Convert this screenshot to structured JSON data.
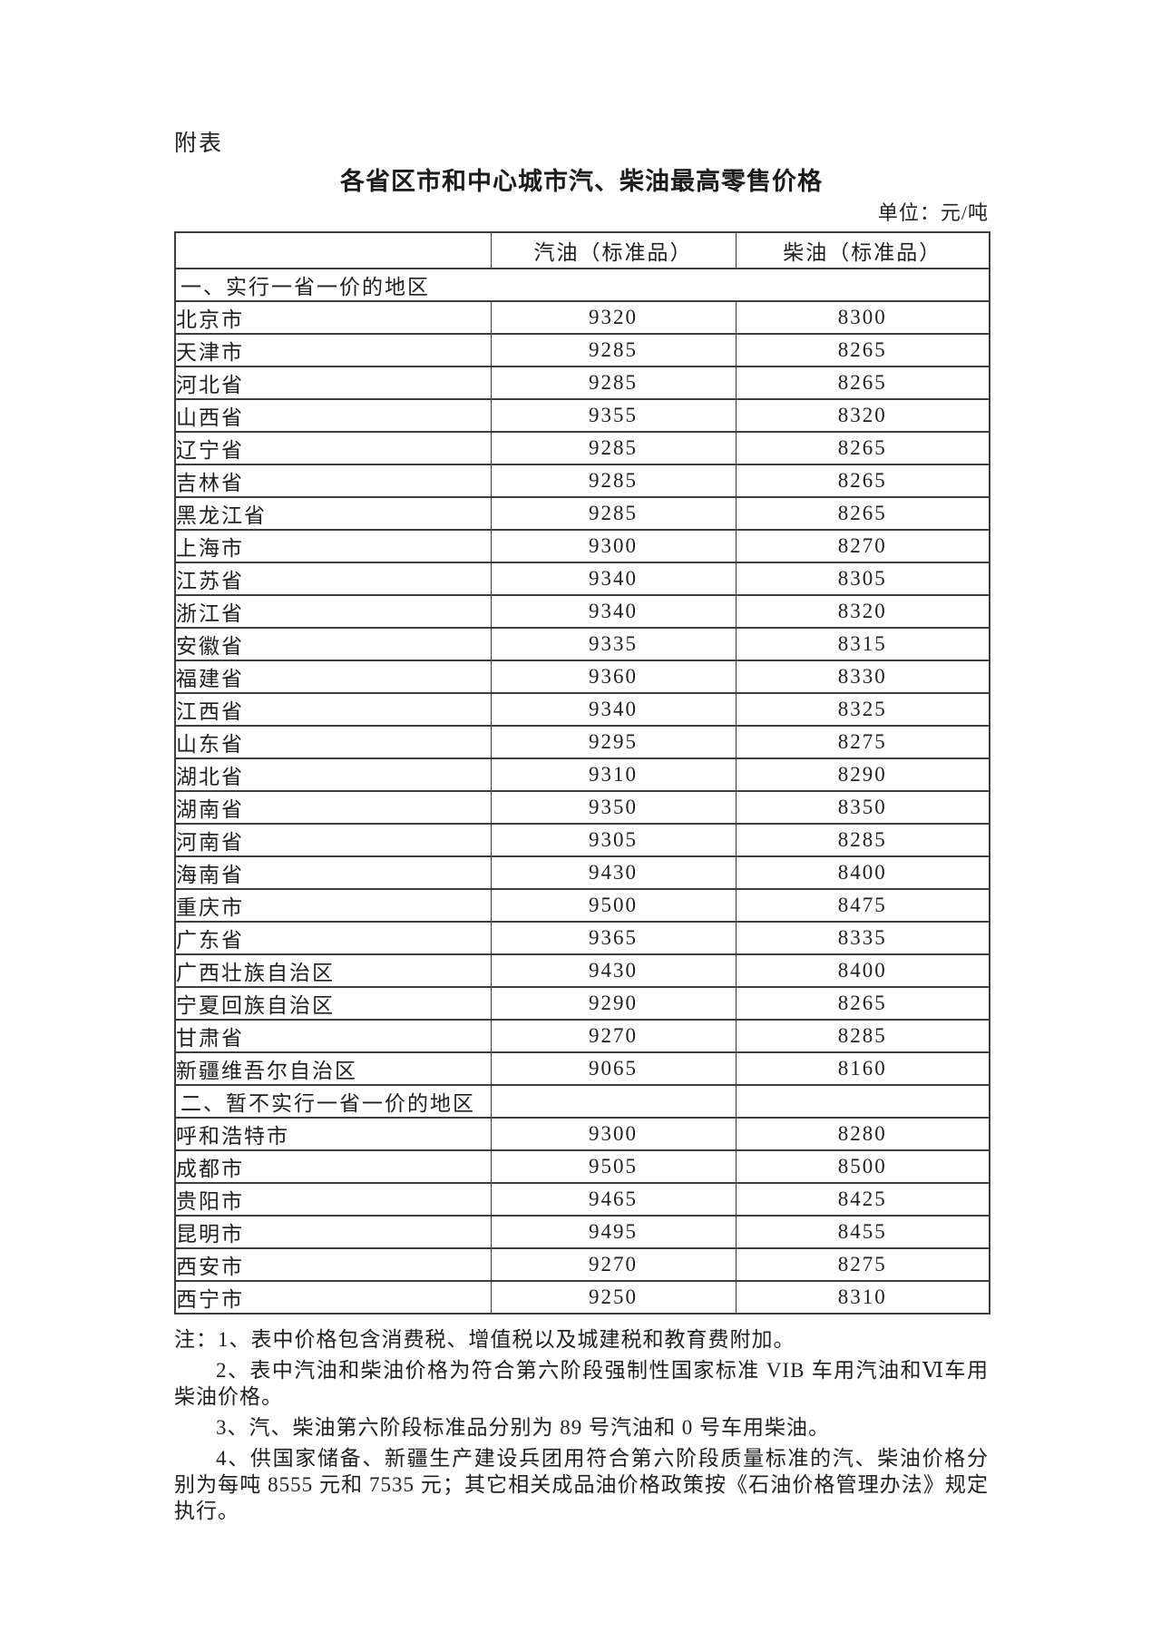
{
  "page": {
    "label": "附表",
    "title": "各省区市和中心城市汽、柴油最高零售价格",
    "unit": "单位：元/吨"
  },
  "table": {
    "columns": [
      "",
      "汽油（标准品）",
      "柴油（标准品）"
    ],
    "sections": [
      {
        "heading": "一、实行一省一价的地区",
        "full_span": true,
        "rows": [
          {
            "region": "北京市",
            "gasoline": "9320",
            "diesel": "8300"
          },
          {
            "region": "天津市",
            "gasoline": "9285",
            "diesel": "8265"
          },
          {
            "region": "河北省",
            "gasoline": "9285",
            "diesel": "8265"
          },
          {
            "region": "山西省",
            "gasoline": "9355",
            "diesel": "8320"
          },
          {
            "region": "辽宁省",
            "gasoline": "9285",
            "diesel": "8265"
          },
          {
            "region": "吉林省",
            "gasoline": "9285",
            "diesel": "8265"
          },
          {
            "region": "黑龙江省",
            "gasoline": "9285",
            "diesel": "8265"
          },
          {
            "region": "上海市",
            "gasoline": "9300",
            "diesel": "8270"
          },
          {
            "region": "江苏省",
            "gasoline": "9340",
            "diesel": "8305"
          },
          {
            "region": "浙江省",
            "gasoline": "9340",
            "diesel": "8320"
          },
          {
            "region": "安徽省",
            "gasoline": "9335",
            "diesel": "8315"
          },
          {
            "region": "福建省",
            "gasoline": "9360",
            "diesel": "8330"
          },
          {
            "region": "江西省",
            "gasoline": "9340",
            "diesel": "8325"
          },
          {
            "region": "山东省",
            "gasoline": "9295",
            "diesel": "8275"
          },
          {
            "region": "湖北省",
            "gasoline": "9310",
            "diesel": "8290"
          },
          {
            "region": "湖南省",
            "gasoline": "9350",
            "diesel": "8350"
          },
          {
            "region": "河南省",
            "gasoline": "9305",
            "diesel": "8285"
          },
          {
            "region": "海南省",
            "gasoline": "9430",
            "diesel": "8400"
          },
          {
            "region": "重庆市",
            "gasoline": "9500",
            "diesel": "8475"
          },
          {
            "region": "广东省",
            "gasoline": "9365",
            "diesel": "8335"
          },
          {
            "region": "广西壮族自治区",
            "gasoline": "9430",
            "diesel": "8400"
          },
          {
            "region": "宁夏回族自治区",
            "gasoline": "9290",
            "diesel": "8265"
          },
          {
            "region": "甘肃省",
            "gasoline": "9270",
            "diesel": "8285"
          },
          {
            "region": "新疆维吾尔自治区",
            "gasoline": "9065",
            "diesel": "8160"
          }
        ]
      },
      {
        "heading": "二、暂不实行一省一价的地区",
        "full_span": false,
        "rows": [
          {
            "region": "呼和浩特市",
            "gasoline": "9300",
            "diesel": "8280"
          },
          {
            "region": "成都市",
            "gasoline": "9505",
            "diesel": "8500"
          },
          {
            "region": "贵阳市",
            "gasoline": "9465",
            "diesel": "8425"
          },
          {
            "region": "昆明市",
            "gasoline": "9495",
            "diesel": "8455"
          },
          {
            "region": "西安市",
            "gasoline": "9270",
            "diesel": "8275"
          },
          {
            "region": "西宁市",
            "gasoline": "9250",
            "diesel": "8310"
          }
        ]
      }
    ]
  },
  "notes": [
    "注：1、表中价格包含消费税、增值税以及城建税和教育费附加。",
    "2、表中汽油和柴油价格为符合第六阶段强制性国家标准 VIB 车用汽油和Ⅵ车用柴油价格。",
    "3、汽、柴油第六阶段标准品分别为 89 号汽油和 0 号车用柴油。",
    "4、供国家储备、新疆生产建设兵团用符合第六阶段质量标准的汽、柴油价格分别为每吨 8555 元和 7535 元；其它相关成品油价格政策按《石油价格管理办法》规定执行。"
  ]
}
